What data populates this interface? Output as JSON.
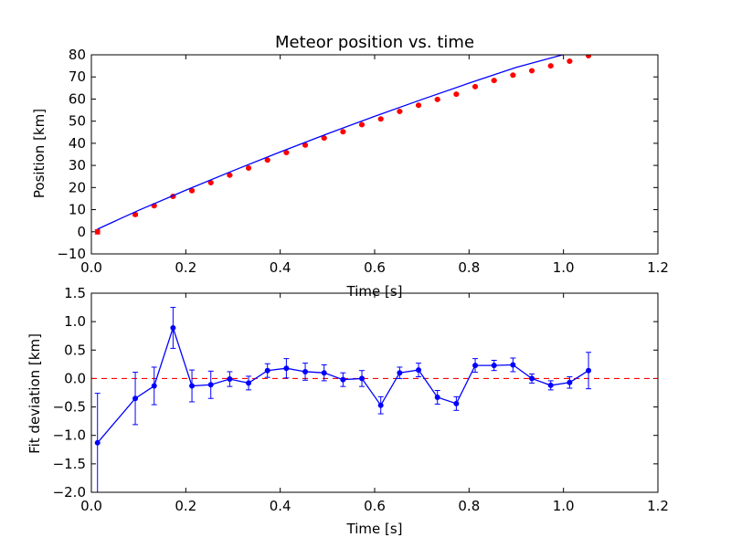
{
  "figure": {
    "background": "#ffffff"
  },
  "chart_data": [
    {
      "type": "scatter",
      "title": "Meteor position vs. time",
      "xlabel": "Time [s]",
      "ylabel": "Position [km]",
      "xlim": [
        0.0,
        1.2
      ],
      "ylim": [
        -10,
        80
      ],
      "xticks": [
        "0.0",
        "0.2",
        "0.4",
        "0.6",
        "0.8",
        "1.0",
        "1.2"
      ],
      "yticks": [
        "−10",
        "0",
        "10",
        "20",
        "30",
        "40",
        "50",
        "60",
        "70",
        "80"
      ],
      "grid": false,
      "series": [
        {
          "kind": "points_with_error",
          "color": "#ff0000",
          "x": [
            0.013,
            0.093,
            0.133,
            0.173,
            0.213,
            0.253,
            0.293,
            0.333,
            0.373,
            0.413,
            0.453,
            0.493,
            0.533,
            0.573,
            0.613,
            0.653,
            0.693,
            0.733,
            0.773,
            0.813,
            0.853,
            0.893,
            0.933,
            0.973,
            1.013,
            1.053
          ],
          "y": [
            0.0,
            7.8,
            11.8,
            16.0,
            18.6,
            22.2,
            25.6,
            28.8,
            32.4,
            35.8,
            39.2,
            42.4,
            45.2,
            48.4,
            51.0,
            54.4,
            57.2,
            59.8,
            62.2,
            65.6,
            68.4,
            70.8,
            72.8,
            75.0,
            77.1,
            79.6
          ],
          "yerr": [
            1.0,
            0.6,
            0.4,
            0.4,
            0.4,
            0.3,
            0.3,
            0.3,
            0.3,
            0.3,
            0.3,
            0.3,
            0.3,
            0.3,
            0.3,
            0.3,
            0.3,
            0.3,
            0.3,
            0.3,
            0.3,
            0.3,
            0.3,
            0.3,
            0.3,
            0.3
          ]
        },
        {
          "kind": "fit_line",
          "color": "#0000ff",
          "x": [
            0.013,
            0.1,
            0.2,
            0.3,
            0.4,
            0.5,
            0.6,
            0.7,
            0.8,
            0.9,
            1.0,
            1.06
          ],
          "y": [
            1.2,
            9.7,
            18.8,
            27.6,
            36.1,
            44.3,
            52.2,
            59.8,
            67.2,
            74.3,
            80.1,
            80.1
          ]
        }
      ]
    },
    {
      "type": "line",
      "title": "",
      "xlabel": "Time [s]",
      "ylabel": "Fit deviation [km]",
      "xlim": [
        0.0,
        1.2
      ],
      "ylim": [
        -2.0,
        1.5
      ],
      "xticks": [
        "0.0",
        "0.2",
        "0.4",
        "0.6",
        "0.8",
        "1.0",
        "1.2"
      ],
      "yticks": [
        "−2.0",
        "−1.5",
        "−1.0",
        "−0.5",
        "0.0",
        "0.5",
        "1.0",
        "1.5"
      ],
      "grid": false,
      "reference_line": {
        "y": 0.0,
        "color": "#ff0000",
        "style": "dashed"
      },
      "series": [
        {
          "kind": "line_with_error",
          "color": "#0000ff",
          "x": [
            0.013,
            0.093,
            0.133,
            0.173,
            0.213,
            0.253,
            0.293,
            0.333,
            0.373,
            0.413,
            0.453,
            0.493,
            0.533,
            0.573,
            0.613,
            0.653,
            0.693,
            0.733,
            0.773,
            0.813,
            0.853,
            0.893,
            0.933,
            0.973,
            1.013,
            1.053
          ],
          "y": [
            -1.13,
            -0.35,
            -0.13,
            0.89,
            -0.13,
            -0.11,
            -0.01,
            -0.08,
            0.14,
            0.18,
            0.12,
            0.1,
            -0.02,
            0.0,
            -0.47,
            0.1,
            0.15,
            -0.33,
            -0.44,
            0.23,
            0.23,
            0.24,
            0.0,
            -0.12,
            -0.07,
            0.14
          ],
          "yerr": [
            0.87,
            0.46,
            0.33,
            0.36,
            0.28,
            0.24,
            0.13,
            0.12,
            0.12,
            0.17,
            0.15,
            0.14,
            0.12,
            0.14,
            0.15,
            0.1,
            0.12,
            0.12,
            0.12,
            0.12,
            0.09,
            0.12,
            0.08,
            0.08,
            0.1,
            0.32
          ]
        }
      ]
    }
  ]
}
